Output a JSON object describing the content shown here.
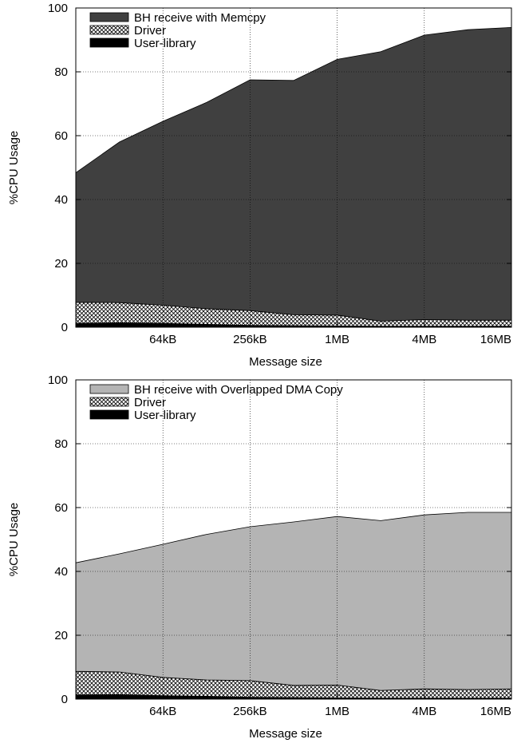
{
  "chart_data": [
    {
      "type": "area",
      "stacked": true,
      "title": "",
      "xlabel": "Message size",
      "ylabel": "%CPU Usage",
      "ylim": [
        0,
        100
      ],
      "yticks": [
        0,
        20,
        40,
        60,
        80,
        100
      ],
      "xticks": [
        "64kB",
        "256kB",
        "1MB",
        "4MB",
        "16MB"
      ],
      "x": [
        16,
        32,
        64,
        128,
        256,
        512,
        1024,
        2048,
        4096,
        8192,
        16384
      ],
      "x_unit": "kB",
      "grid": true,
      "legend_position": "top-left",
      "series": [
        {
          "name": "User-library",
          "fill": "solid",
          "color": "#000000",
          "values": [
            1.2,
            1.4,
            1.2,
            0.9,
            0.6,
            0.5,
            0.4,
            0.3,
            0.3,
            0.3,
            0.3
          ]
        },
        {
          "name": "Driver",
          "fill": "crosshatch",
          "color": "#000000",
          "values": [
            6.6,
            6.3,
            5.7,
            4.9,
            4.6,
            3.4,
            3.4,
            1.6,
            2.1,
            1.9,
            1.9
          ]
        },
        {
          "name": "BH receive with Memcpy",
          "fill": "solid",
          "color": "#404040",
          "values": [
            40.6,
            50.3,
            57.6,
            64.6,
            72.3,
            73.4,
            80.1,
            84.4,
            89.1,
            91.0,
            91.7
          ]
        }
      ]
    },
    {
      "type": "area",
      "stacked": true,
      "title": "",
      "xlabel": "Message size",
      "ylabel": "%CPU Usage",
      "ylim": [
        0,
        100
      ],
      "yticks": [
        0,
        20,
        40,
        60,
        80,
        100
      ],
      "xticks": [
        "64kB",
        "256kB",
        "1MB",
        "4MB",
        "16MB"
      ],
      "x": [
        16,
        32,
        64,
        128,
        256,
        512,
        1024,
        2048,
        4096,
        8192,
        16384
      ],
      "x_unit": "kB",
      "grid": true,
      "legend_position": "top-left",
      "series": [
        {
          "name": "User-library",
          "fill": "solid",
          "color": "#000000",
          "values": [
            1.3,
            1.4,
            1.1,
            0.9,
            0.6,
            0.5,
            0.4,
            0.3,
            0.3,
            0.3,
            0.3
          ]
        },
        {
          "name": "Driver",
          "fill": "crosshatch",
          "color": "#000000",
          "values": [
            7.4,
            7.1,
            5.7,
            5.1,
            5.2,
            3.8,
            4.0,
            2.4,
            2.9,
            2.7,
            2.9
          ]
        },
        {
          "name": "BH receive with Overlapped DMA Copy",
          "fill": "solid",
          "color": "#b4b4b4",
          "values": [
            34.0,
            37.0,
            41.7,
            45.6,
            48.2,
            51.2,
            52.8,
            53.2,
            54.5,
            55.5,
            55.3
          ]
        }
      ]
    }
  ]
}
